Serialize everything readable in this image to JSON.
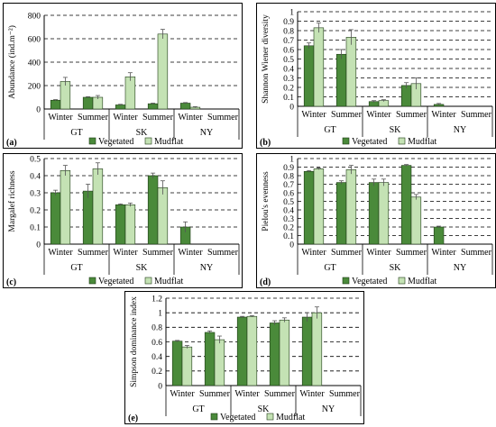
{
  "colors": {
    "vegetated": "#4a8a3a",
    "mudflat": "#c4e2b4",
    "error_bar": "#555555"
  },
  "chart_data": [
    {
      "panel": "(a)",
      "type": "bar",
      "ylabel": "Abundance (ind.m⁻²)",
      "ylim": [
        0,
        800
      ],
      "yticks": [
        0,
        200,
        400,
        600,
        800
      ],
      "grid": "dashed horizontal",
      "groups": [
        "GT",
        "SK",
        "NY"
      ],
      "categories": [
        "Winter",
        "Summer",
        "Winter",
        "Summer",
        "Winter",
        "Summer"
      ],
      "series": [
        {
          "name": "Vegetated",
          "values": [
            75,
            100,
            35,
            45,
            50,
            null
          ],
          "errors": [
            5,
            5,
            5,
            5,
            5,
            null
          ]
        },
        {
          "name": "Mudflat",
          "values": [
            235,
            100,
            275,
            640,
            15,
            null
          ],
          "errors": [
            35,
            15,
            35,
            40,
            5,
            null
          ]
        }
      ],
      "legend": "bottom-center"
    },
    {
      "panel": "(b)",
      "type": "bar",
      "ylabel": "Shannon Wiener diversity",
      "ylim": [
        0,
        1
      ],
      "yticks": [
        "0",
        "0.1",
        "0.2",
        "0.3",
        "0.4",
        "0.5",
        "0.6",
        "0.7",
        "0.8",
        "0.9",
        "1"
      ],
      "grid": "dashed horizontal",
      "groups": [
        "GT",
        "SK",
        "NY"
      ],
      "categories": [
        "Winter",
        "Summer",
        "Winter",
        "Summer",
        "Winter",
        "Summer"
      ],
      "series": [
        {
          "name": "Vegetated",
          "values": [
            0.64,
            0.55,
            0.05,
            0.22,
            0.02,
            null
          ],
          "errors": [
            0.03,
            0.05,
            0.01,
            0.03,
            0.01,
            null
          ]
        },
        {
          "name": "Mudflat",
          "values": [
            0.83,
            0.73,
            0.06,
            0.24,
            null,
            null
          ],
          "errors": [
            0.05,
            0.08,
            0.01,
            0.06,
            null,
            null
          ]
        }
      ],
      "legend": "bottom-center"
    },
    {
      "panel": "(c)",
      "type": "bar",
      "ylabel": "Margalef richness",
      "ylim": [
        0,
        0.5
      ],
      "yticks": [
        "0",
        "0.1",
        "0.2",
        "0.3",
        "0.4",
        "0.5"
      ],
      "grid": "dashed horizontal",
      "groups": [
        "GT",
        "SK",
        "NY"
      ],
      "categories": [
        "Winter",
        "Summer",
        "Winter",
        "Summer",
        "Winter",
        "Summer"
      ],
      "series": [
        {
          "name": "Vegetated",
          "values": [
            0.3,
            0.31,
            0.23,
            0.4,
            0.1,
            null
          ],
          "errors": [
            0.015,
            0.04,
            0.005,
            0.015,
            0.03,
            null
          ]
        },
        {
          "name": "Mudflat",
          "values": [
            0.43,
            0.44,
            0.23,
            0.33,
            null,
            null
          ],
          "errors": [
            0.03,
            0.035,
            0.01,
            0.04,
            null,
            null
          ]
        }
      ],
      "legend": "bottom-center"
    },
    {
      "panel": "(d)",
      "type": "bar",
      "ylabel": "Pielou's evenness",
      "ylim": [
        0,
        1
      ],
      "yticks": [
        "0",
        "0.1",
        "0.2",
        "0.3",
        "0.4",
        "0.5",
        "0.6",
        "0.7",
        "0.8",
        "0.9",
        "1"
      ],
      "grid": "dashed horizontal",
      "groups": [
        "GT",
        "SK",
        "NY"
      ],
      "categories": [
        "Winter",
        "Summer",
        "Winter",
        "Summer",
        "Winter",
        "Summer"
      ],
      "series": [
        {
          "name": "Vegetated",
          "values": [
            0.85,
            0.72,
            0.72,
            0.92,
            0.2,
            null
          ],
          "errors": [
            0.01,
            0.02,
            0.04,
            0.01,
            0.01,
            null
          ]
        },
        {
          "name": "Mudflat",
          "values": [
            0.88,
            0.87,
            0.72,
            0.55,
            null,
            null
          ],
          "errors": [
            0.01,
            0.05,
            0.04,
            0.03,
            null,
            null
          ]
        }
      ],
      "legend": "bottom-center"
    },
    {
      "panel": "(e)",
      "type": "bar",
      "ylabel": "Simpson dominance index",
      "ylim": [
        0,
        1.2
      ],
      "yticks": [
        "0",
        "0.2",
        "0.4",
        "0.6",
        "0.8",
        "1",
        "1.2"
      ],
      "grid": "dashed horizontal",
      "groups": [
        "GT",
        "SK",
        "NY"
      ],
      "categories": [
        "Winter",
        "Summer",
        "Winter",
        "Summer",
        "Winter",
        "Summer"
      ],
      "series": [
        {
          "name": "Vegetated",
          "values": [
            0.61,
            0.73,
            0.94,
            0.86,
            0.94,
            null
          ],
          "errors": [
            0.01,
            0.02,
            0.01,
            0.03,
            0.06,
            null
          ]
        },
        {
          "name": "Mudflat",
          "values": [
            0.53,
            0.63,
            0.95,
            0.9,
            1.0,
            null
          ],
          "errors": [
            0.02,
            0.05,
            0.01,
            0.03,
            0.08,
            null
          ]
        }
      ],
      "legend": "bottom-center"
    }
  ]
}
